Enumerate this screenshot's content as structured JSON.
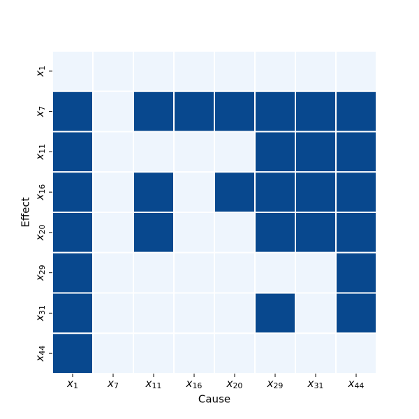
{
  "chart_data": {
    "type": "heatmap",
    "x_label": "Cause",
    "y_label": "Effect",
    "x_categories": [
      "x1",
      "x7",
      "x11",
      "x16",
      "x20",
      "x29",
      "x31",
      "x44"
    ],
    "y_categories": [
      "x1",
      "x7",
      "x11",
      "x16",
      "x20",
      "x29",
      "x31",
      "x44"
    ],
    "values": [
      [
        0,
        0,
        0,
        0,
        0,
        0,
        0,
        0
      ],
      [
        1,
        0,
        1,
        1,
        1,
        1,
        1,
        1
      ],
      [
        1,
        0,
        0,
        0,
        0,
        1,
        1,
        1
      ],
      [
        1,
        0,
        1,
        0,
        1,
        1,
        1,
        1
      ],
      [
        1,
        0,
        1,
        0,
        0,
        1,
        1,
        1
      ],
      [
        1,
        0,
        0,
        0,
        0,
        0,
        0,
        1
      ],
      [
        1,
        0,
        0,
        0,
        0,
        1,
        0,
        1
      ],
      [
        1,
        0,
        0,
        0,
        0,
        0,
        0,
        0
      ]
    ],
    "colors": [
      "#eef5fd",
      "#08488e"
    ]
  }
}
